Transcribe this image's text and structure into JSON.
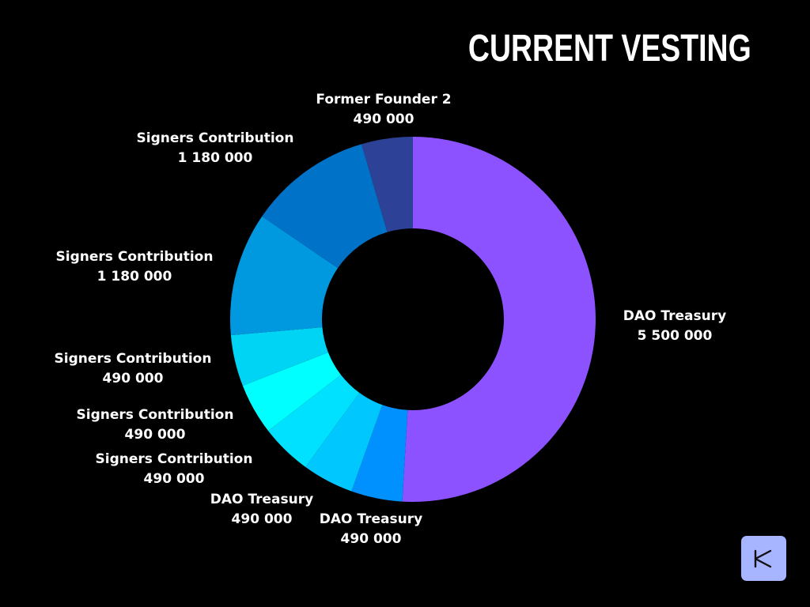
{
  "chart_data": {
    "type": "pie",
    "title": "CURRENT VESTING",
    "donut": true,
    "slices": [
      {
        "label": "DAO Treasury",
        "value": 5500000,
        "value_text": "5 500 000",
        "color": "#8c52ff"
      },
      {
        "label": "DAO Treasury",
        "value": 490000,
        "value_text": "490 000",
        "color": "#0091ff"
      },
      {
        "label": "DAO Treasury",
        "value": 490000,
        "value_text": "490 000",
        "color": "#00c8ff"
      },
      {
        "label": "Signers Contribution",
        "value": 490000,
        "value_text": "490 000",
        "color": "#00e1ff"
      },
      {
        "label": "Signers Contribution",
        "value": 490000,
        "value_text": "490 000",
        "color": "#00ffff"
      },
      {
        "label": "Signers Contribution",
        "value": 490000,
        "value_text": "490 000",
        "color": "#00d4f5"
      },
      {
        "label": "Signers Contribution",
        "value": 1180000,
        "value_text": "1 180 000",
        "color": "#0099e0"
      },
      {
        "label": "Signers Contribution",
        "value": 1180000,
        "value_text": "1 180 000",
        "color": "#0073c8"
      },
      {
        "label": "Former Founder 2",
        "value": 490000,
        "value_text": "490 000",
        "color": "#2d4296"
      }
    ]
  },
  "logo": {
    "icon": "bowtie-x-icon",
    "color": "#a7b4ff"
  }
}
